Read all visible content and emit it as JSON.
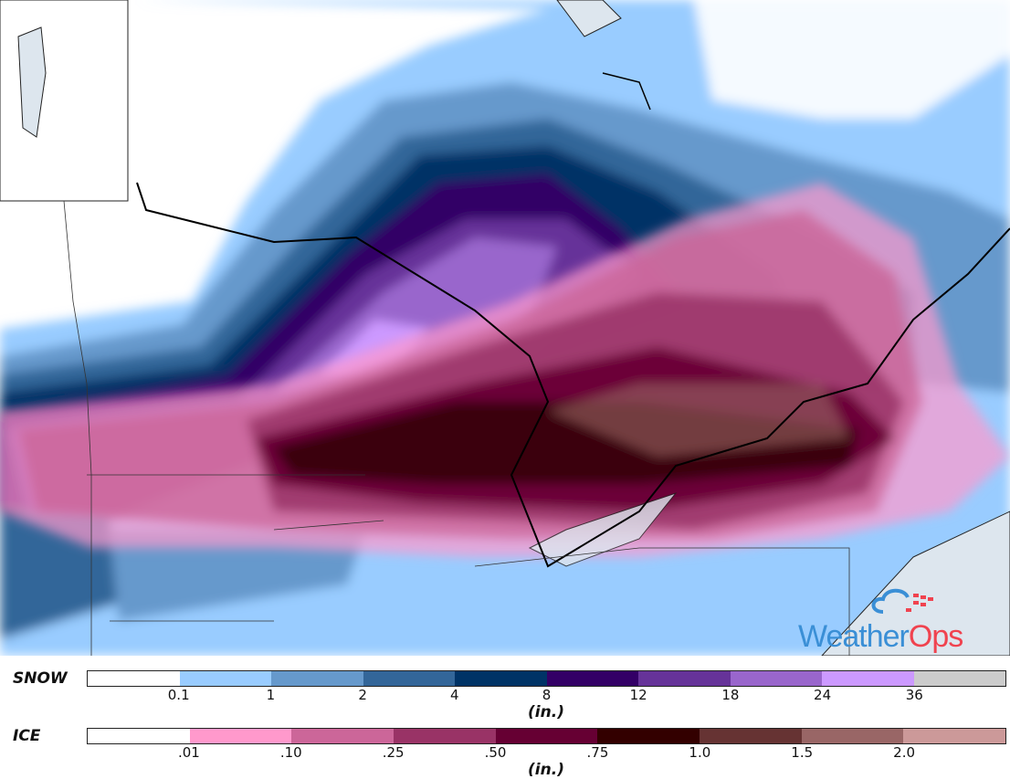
{
  "legend": {
    "snow": {
      "title": "SNOW",
      "unit": "(in.)",
      "colors": [
        "#ffffff",
        "#99ccff",
        "#6699cc",
        "#336699",
        "#003366",
        "#330066",
        "#663399",
        "#9966cc",
        "#cc99ff",
        "#cccccc"
      ],
      "ticks": [
        "0.1",
        "1",
        "2",
        "4",
        "8",
        "12",
        "18",
        "24",
        "36"
      ]
    },
    "ice": {
      "title": "ICE",
      "unit": "(in.)",
      "colors": [
        "#ffffff",
        "#ff99cc",
        "#cc6699",
        "#993366",
        "#660033",
        "#330000",
        "#663333",
        "#996666",
        "#cc9999"
      ],
      "ticks": [
        ".01",
        ".10",
        ".25",
        ".50",
        ".75",
        "1.0",
        "1.5",
        "2.0"
      ]
    }
  },
  "logo": {
    "brand_part1": "Weather",
    "brand_part2": "Ops",
    "colors": {
      "blue": "#3a8fd6",
      "red": "#f0434f"
    }
  }
}
